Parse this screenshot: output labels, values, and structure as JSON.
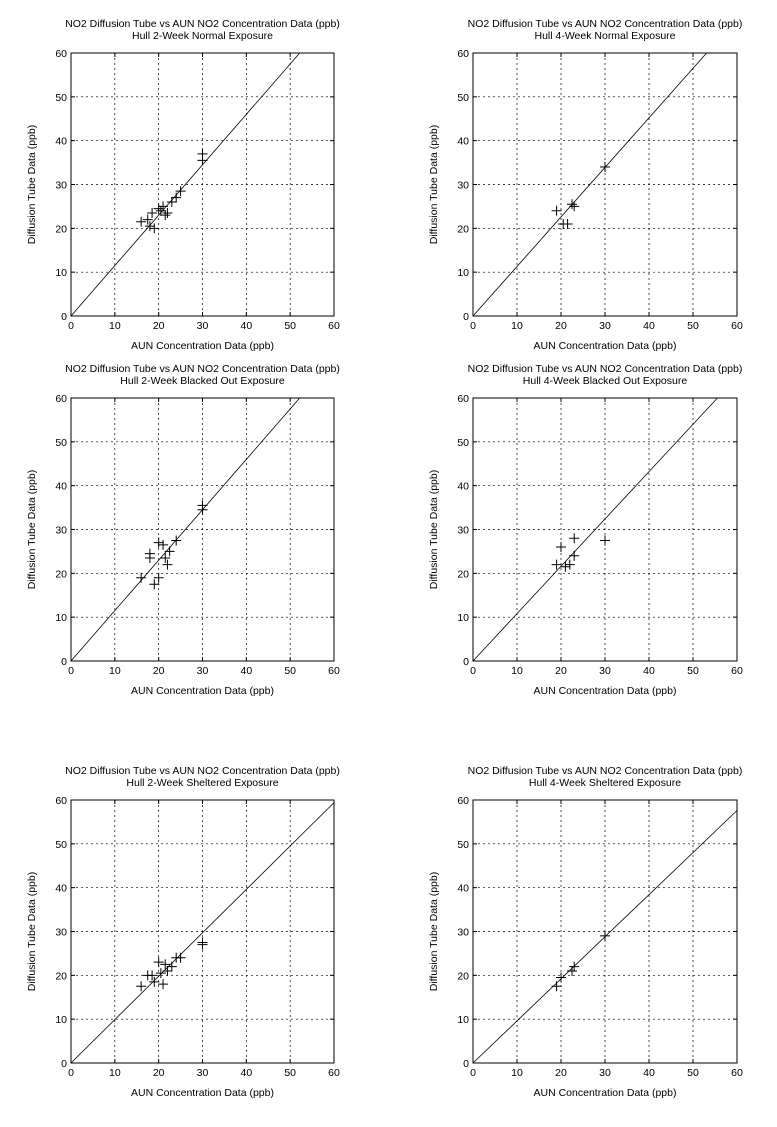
{
  "colors": {
    "background": "#ffffff",
    "ink": "#000000"
  },
  "chart_data": [
    {
      "type": "scatter",
      "title": "NO2 Diffusion Tube vs AUN NO2 Concentration Data (ppb)",
      "subtitle": "Hull 2-Week Normal Exposure",
      "xlabel": "AUN Concentration Data (ppb)",
      "ylabel": "Diffusion Tube Data (ppb)",
      "xlim": [
        0,
        60
      ],
      "ylim": [
        0,
        60
      ],
      "xticks": [
        "0",
        "10",
        "20",
        "30",
        "40",
        "50",
        "60"
      ],
      "yticks": [
        "0",
        "10",
        "20",
        "30",
        "40",
        "50",
        "60"
      ],
      "grid": true,
      "marker": "plus",
      "trend_line": {
        "slope": 1.15,
        "intercept": 0
      },
      "points": [
        {
          "x": 16,
          "y": 21.5
        },
        {
          "x": 17.5,
          "y": 22
        },
        {
          "x": 18,
          "y": 20.5
        },
        {
          "x": 18.5,
          "y": 23.5
        },
        {
          "x": 19,
          "y": 20
        },
        {
          "x": 20,
          "y": 24.5
        },
        {
          "x": 20.5,
          "y": 24
        },
        {
          "x": 21,
          "y": 25
        },
        {
          "x": 21.5,
          "y": 23
        },
        {
          "x": 22,
          "y": 23.5
        },
        {
          "x": 23,
          "y": 26
        },
        {
          "x": 24,
          "y": 27
        },
        {
          "x": 25,
          "y": 28.5
        },
        {
          "x": 30,
          "y": 35.5
        },
        {
          "x": 30,
          "y": 37
        }
      ]
    },
    {
      "type": "scatter",
      "title": "NO2 Diffusion Tube vs AUN NO2 Concentration Data (ppb)",
      "subtitle": "Hull 4-Week Normal Exposure",
      "xlabel": "AUN Concentration Data (ppb)",
      "ylabel": "Diffusion Tube Data (ppb)",
      "xlim": [
        0,
        60
      ],
      "ylim": [
        0,
        60
      ],
      "xticks": [
        "0",
        "10",
        "20",
        "30",
        "40",
        "50",
        "60"
      ],
      "yticks": [
        "0",
        "10",
        "20",
        "30",
        "40",
        "50",
        "60"
      ],
      "grid": true,
      "marker": "plus",
      "trend_line": {
        "slope": 1.13,
        "intercept": 0
      },
      "points": [
        {
          "x": 19,
          "y": 24
        },
        {
          "x": 20.5,
          "y": 21
        },
        {
          "x": 21.5,
          "y": 21
        },
        {
          "x": 22.5,
          "y": 25.5
        },
        {
          "x": 23,
          "y": 25
        },
        {
          "x": 30,
          "y": 34
        }
      ]
    },
    {
      "type": "scatter",
      "title": "NO2 Diffusion Tube vs AUN NO2 Concentration Data (ppb)",
      "subtitle": "Hull 2-Week Blacked Out Exposure",
      "xlabel": "AUN Concentration Data (ppb)",
      "ylabel": "Diffusion Tube Data (ppb)",
      "xlim": [
        0,
        60
      ],
      "ylim": [
        0,
        60
      ],
      "xticks": [
        "0",
        "10",
        "20",
        "30",
        "40",
        "50",
        "60"
      ],
      "yticks": [
        "0",
        "10",
        "20",
        "30",
        "40",
        "50",
        "60"
      ],
      "grid": true,
      "marker": "plus",
      "trend_line": {
        "slope": 1.15,
        "intercept": 0
      },
      "points": [
        {
          "x": 16,
          "y": 19
        },
        {
          "x": 18,
          "y": 23.5
        },
        {
          "x": 18,
          "y": 24.5
        },
        {
          "x": 19,
          "y": 17.5
        },
        {
          "x": 20,
          "y": 19
        },
        {
          "x": 20,
          "y": 27
        },
        {
          "x": 21,
          "y": 26.5
        },
        {
          "x": 21.5,
          "y": 23.5
        },
        {
          "x": 22,
          "y": 22
        },
        {
          "x": 22.5,
          "y": 25
        },
        {
          "x": 24,
          "y": 27.5
        },
        {
          "x": 30,
          "y": 34.5
        },
        {
          "x": 30,
          "y": 35.5
        }
      ]
    },
    {
      "type": "scatter",
      "title": "NO2 Diffusion Tube vs AUN NO2 Concentration Data (ppb)",
      "subtitle": "Hull 4-Week Blacked Out Exposure",
      "xlabel": "AUN Concentration Data (ppb)",
      "ylabel": "Diffusion Tube Data (ppb)",
      "xlim": [
        0,
        60
      ],
      "ylim": [
        0,
        60
      ],
      "xticks": [
        "0",
        "10",
        "20",
        "30",
        "40",
        "50",
        "60"
      ],
      "yticks": [
        "0",
        "10",
        "20",
        "30",
        "40",
        "50",
        "60"
      ],
      "grid": true,
      "marker": "plus",
      "trend_line": {
        "slope": 1.08,
        "intercept": 0
      },
      "points": [
        {
          "x": 19,
          "y": 22
        },
        {
          "x": 20,
          "y": 26
        },
        {
          "x": 21,
          "y": 21.5
        },
        {
          "x": 22,
          "y": 22
        },
        {
          "x": 23,
          "y": 24
        },
        {
          "x": 23,
          "y": 28
        },
        {
          "x": 30,
          "y": 27.5
        }
      ]
    },
    {
      "type": "scatter",
      "title": "NO2 Diffusion Tube vs AUN NO2 Concentration Data (ppb)",
      "subtitle": "Hull 2-Week Sheltered Exposure",
      "xlabel": "AUN Concentration Data (ppb)",
      "ylabel": "Diffusion Tube Data (ppb)",
      "xlim": [
        0,
        60
      ],
      "ylim": [
        0,
        60
      ],
      "xticks": [
        "0",
        "10",
        "20",
        "30",
        "40",
        "50",
        "60"
      ],
      "yticks": [
        "0",
        "10",
        "20",
        "30",
        "40",
        "50",
        "60"
      ],
      "grid": true,
      "marker": "plus",
      "trend_line": {
        "slope": 0.99,
        "intercept": 0
      },
      "points": [
        {
          "x": 16,
          "y": 17.5
        },
        {
          "x": 17.5,
          "y": 20
        },
        {
          "x": 18.5,
          "y": 20
        },
        {
          "x": 19,
          "y": 18.5
        },
        {
          "x": 20,
          "y": 23
        },
        {
          "x": 20.5,
          "y": 20.5
        },
        {
          "x": 21,
          "y": 18
        },
        {
          "x": 21.5,
          "y": 22.5
        },
        {
          "x": 22,
          "y": 21
        },
        {
          "x": 23,
          "y": 22
        },
        {
          "x": 24,
          "y": 24
        },
        {
          "x": 25,
          "y": 24
        },
        {
          "x": 30,
          "y": 27
        },
        {
          "x": 30,
          "y": 27.5
        }
      ]
    },
    {
      "type": "scatter",
      "title": "NO2 Diffusion Tube vs AUN NO2 Concentration Data (ppb)",
      "subtitle": "Hull 4-Week Sheltered Exposure",
      "xlabel": "AUN Concentration Data (ppb)",
      "ylabel": "Diffusion Tube Data (ppb)",
      "xlim": [
        0,
        60
      ],
      "ylim": [
        0,
        60
      ],
      "xticks": [
        "0",
        "10",
        "20",
        "30",
        "40",
        "50",
        "60"
      ],
      "yticks": [
        "0",
        "10",
        "20",
        "30",
        "40",
        "50",
        "60"
      ],
      "grid": true,
      "marker": "plus",
      "trend_line": {
        "slope": 0.96,
        "intercept": 0
      },
      "points": [
        {
          "x": 19,
          "y": 17.5
        },
        {
          "x": 20,
          "y": 19.5
        },
        {
          "x": 22.5,
          "y": 21
        },
        {
          "x": 23,
          "y": 22
        },
        {
          "x": 30,
          "y": 29
        }
      ]
    }
  ]
}
